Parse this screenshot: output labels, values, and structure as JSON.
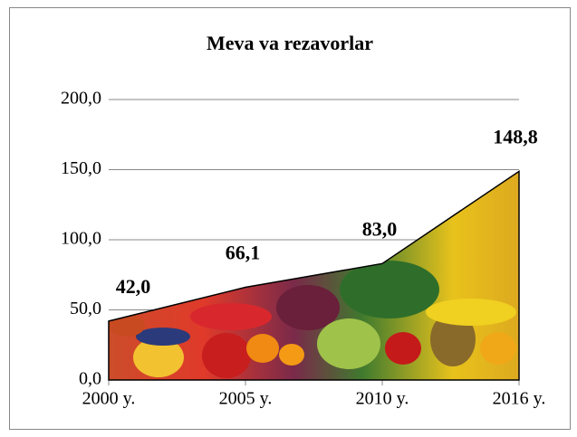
{
  "chart_data": {
    "type": "area",
    "title": "Meva va rezavorlar",
    "categories": [
      "2000 y.",
      "2005 y.",
      "2010 y.",
      "2016 y."
    ],
    "values": [
      42.0,
      66.1,
      83.0,
      148.8
    ],
    "value_labels": [
      "42,0",
      "66,1",
      "83,0",
      "148,8"
    ],
    "color": "#000000",
    "ylim": [
      0,
      200
    ],
    "yticks": [
      {
        "value": 0,
        "label": "0,0"
      },
      {
        "value": 50,
        "label": "50,0"
      },
      {
        "value": 100,
        "label": "100,0"
      },
      {
        "value": 150,
        "label": "150,0"
      },
      {
        "value": 200,
        "label": "200,0"
      }
    ],
    "grid": true
  }
}
